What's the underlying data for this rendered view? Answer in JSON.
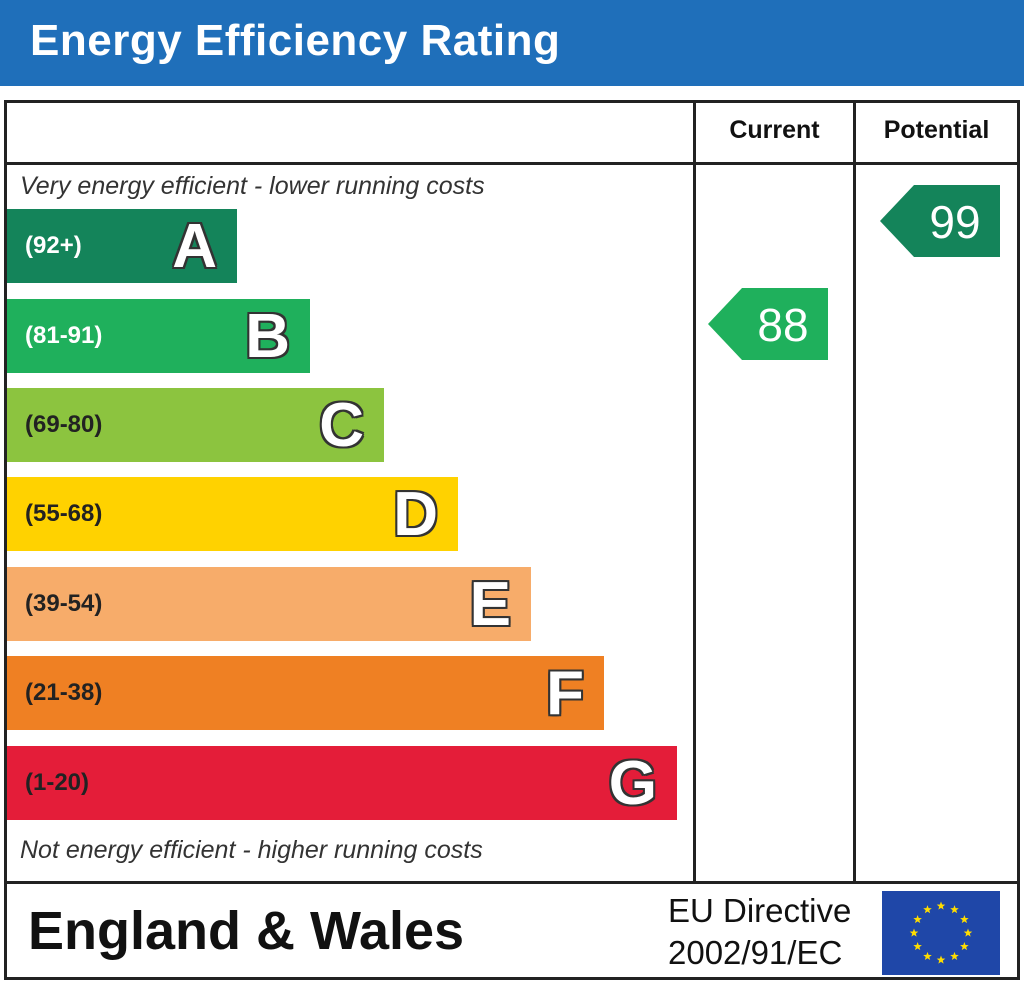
{
  "header": {
    "title": "Energy Efficiency Rating"
  },
  "columns": {
    "current": "Current",
    "potential": "Potential"
  },
  "notes": {
    "top": "Very energy efficient - lower running costs",
    "bottom": "Not energy efficient - higher running costs"
  },
  "chart_data": {
    "type": "bar",
    "categories": [
      "A",
      "B",
      "C",
      "D",
      "E",
      "F",
      "G"
    ],
    "ranges": [
      "(92+)",
      "(81-91)",
      "(69-80)",
      "(55-68)",
      "(39-54)",
      "(21-38)",
      "(1-20)"
    ],
    "band_colors": [
      "#14845a",
      "#1fb05c",
      "#8cc43f",
      "#ffd200",
      "#f7ac6a",
      "#ef8023",
      "#e41d39"
    ],
    "range_text_colors": [
      "#ffffff",
      "#ffffff",
      "#222222",
      "#222222",
      "#222222",
      "#222222",
      "#222222"
    ],
    "current": {
      "value": 88,
      "band": "B",
      "color": "#1fb05c"
    },
    "potential": {
      "value": 99,
      "band": "A",
      "color": "#14845a"
    }
  },
  "footer": {
    "region": "England & Wales",
    "directive_line1": "EU Directive",
    "directive_line2": "2002/91/EC"
  },
  "flag": {
    "background": "#1f47a8",
    "stars": 12,
    "star_color": "#ffdd00"
  }
}
